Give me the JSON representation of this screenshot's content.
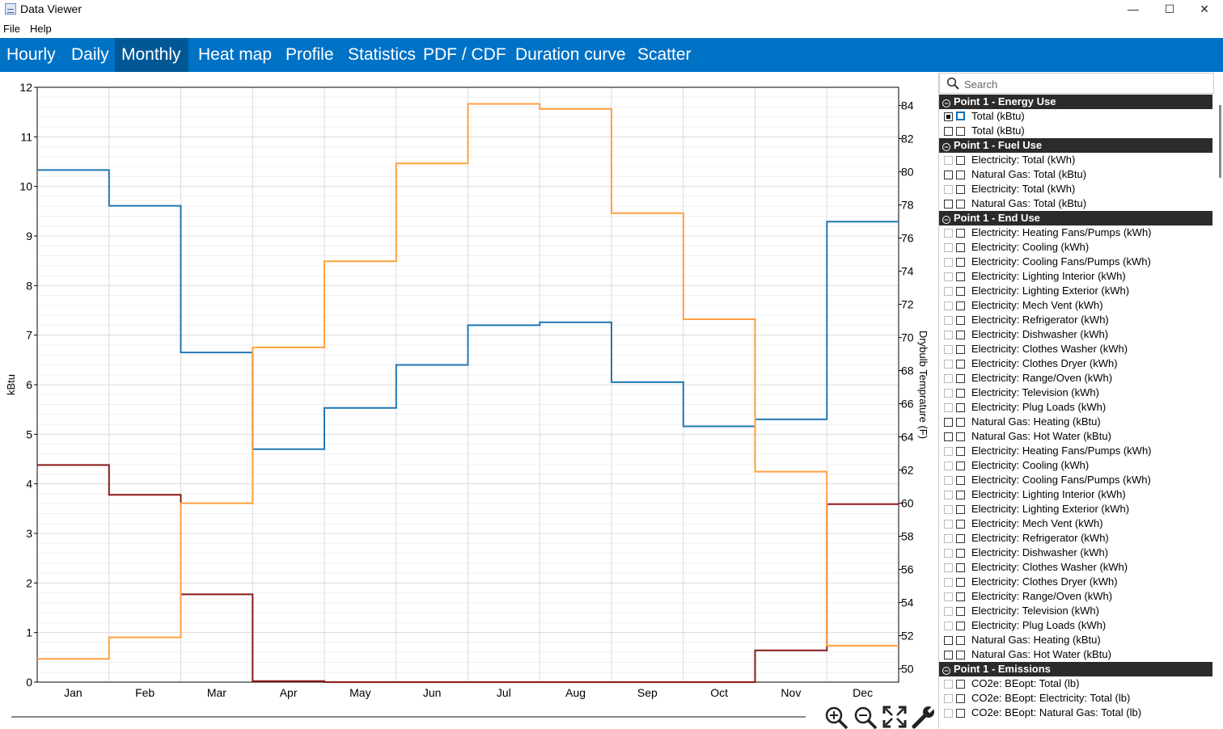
{
  "window": {
    "title": "Data Viewer",
    "minimize": "—",
    "maximize": "☐",
    "close": "✕"
  },
  "menu": [
    "File",
    "Help"
  ],
  "tabs": [
    "Hourly",
    "Daily",
    "Monthly",
    "Heat map",
    "Profile",
    "Statistics",
    "PDF / CDF",
    "Duration curve",
    "Scatter"
  ],
  "active_tab": "Monthly",
  "toolbar_icons": [
    "zoom-in-icon",
    "zoom-out-icon",
    "fit-icon",
    "settings-wrench-icon"
  ],
  "search": {
    "placeholder": "Search"
  },
  "panel": {
    "groups": [
      {
        "title": "Point 1 - Energy Use",
        "items": [
          {
            "label": "Total (kBtu)",
            "left": "on",
            "right": "blue"
          },
          {
            "label": "Total (kBtu)",
            "left": "plain",
            "right": "plain"
          }
        ]
      },
      {
        "title": "Point 1 - Fuel Use",
        "items": [
          {
            "label": "Electricity: Total (kWh)",
            "left": "faint",
            "right": "plain"
          },
          {
            "label": "Natural Gas: Total (kBtu)",
            "left": "plain",
            "right": "plain"
          },
          {
            "label": "Electricity: Total (kWh)",
            "left": "faint",
            "right": "plain"
          },
          {
            "label": "Natural Gas: Total (kBtu)",
            "left": "plain",
            "right": "plain"
          }
        ]
      },
      {
        "title": "Point 1 - End Use",
        "items": [
          {
            "label": "Electricity: Heating Fans/Pumps (kWh)",
            "left": "faint",
            "right": "plain"
          },
          {
            "label": "Electricity: Cooling (kWh)",
            "left": "faint",
            "right": "plain"
          },
          {
            "label": "Electricity: Cooling Fans/Pumps (kWh)",
            "left": "faint",
            "right": "plain"
          },
          {
            "label": "Electricity: Lighting Interior (kWh)",
            "left": "faint",
            "right": "plain"
          },
          {
            "label": "Electricity: Lighting Exterior (kWh)",
            "left": "faint",
            "right": "plain"
          },
          {
            "label": "Electricity: Mech Vent (kWh)",
            "left": "faint",
            "right": "plain"
          },
          {
            "label": "Electricity: Refrigerator (kWh)",
            "left": "faint",
            "right": "plain"
          },
          {
            "label": "Electricity: Dishwasher (kWh)",
            "left": "faint",
            "right": "plain"
          },
          {
            "label": "Electricity: Clothes Washer (kWh)",
            "left": "faint",
            "right": "plain"
          },
          {
            "label": "Electricity: Clothes Dryer (kWh)",
            "left": "faint",
            "right": "plain"
          },
          {
            "label": "Electricity: Range/Oven (kWh)",
            "left": "faint",
            "right": "plain"
          },
          {
            "label": "Electricity: Television (kWh)",
            "left": "faint",
            "right": "plain"
          },
          {
            "label": "Electricity: Plug Loads (kWh)",
            "left": "faint",
            "right": "plain"
          },
          {
            "label": "Natural Gas: Heating (kBtu)",
            "left": "plain",
            "right": "plain"
          },
          {
            "label": "Natural Gas: Hot Water (kBtu)",
            "left": "plain",
            "right": "plain"
          },
          {
            "label": "Electricity: Heating Fans/Pumps (kWh)",
            "left": "faint",
            "right": "plain"
          },
          {
            "label": "Electricity: Cooling (kWh)",
            "left": "faint",
            "right": "plain"
          },
          {
            "label": "Electricity: Cooling Fans/Pumps (kWh)",
            "left": "faint",
            "right": "plain"
          },
          {
            "label": "Electricity: Lighting Interior (kWh)",
            "left": "faint",
            "right": "plain"
          },
          {
            "label": "Electricity: Lighting Exterior (kWh)",
            "left": "faint",
            "right": "plain"
          },
          {
            "label": "Electricity: Mech Vent (kWh)",
            "left": "faint",
            "right": "plain"
          },
          {
            "label": "Electricity: Refrigerator (kWh)",
            "left": "faint",
            "right": "plain"
          },
          {
            "label": "Electricity: Dishwasher (kWh)",
            "left": "faint",
            "right": "plain"
          },
          {
            "label": "Electricity: Clothes Washer (kWh)",
            "left": "faint",
            "right": "plain"
          },
          {
            "label": "Electricity: Clothes Dryer (kWh)",
            "left": "faint",
            "right": "plain"
          },
          {
            "label": "Electricity: Range/Oven (kWh)",
            "left": "faint",
            "right": "plain"
          },
          {
            "label": "Electricity: Television (kWh)",
            "left": "faint",
            "right": "plain"
          },
          {
            "label": "Electricity: Plug Loads (kWh)",
            "left": "faint",
            "right": "plain"
          },
          {
            "label": "Natural Gas: Heating (kBtu)",
            "left": "plain",
            "right": "plain"
          },
          {
            "label": "Natural Gas: Hot Water (kBtu)",
            "left": "plain",
            "right": "plain"
          }
        ]
      },
      {
        "title": "Point 1 - Emissions",
        "items": [
          {
            "label": "CO2e: BEopt: Total (lb)",
            "left": "faint",
            "right": "plain"
          },
          {
            "label": "CO2e: BEopt: Electricity: Total (lb)",
            "left": "faint",
            "right": "plain"
          },
          {
            "label": "CO2e: BEopt: Natural Gas: Total (lb)",
            "left": "faint",
            "right": "plain"
          }
        ]
      }
    ]
  },
  "chart_data": {
    "type": "line",
    "step": true,
    "categories": [
      "Jan",
      "Feb",
      "Mar",
      "Apr",
      "May",
      "Jun",
      "Jul",
      "Aug",
      "Sep",
      "Oct",
      "Nov",
      "Dec"
    ],
    "ylabel": "kBtu",
    "y2label": "Drybulb Temprature (F)",
    "ylim": [
      0,
      12
    ],
    "yticks": [
      0,
      1,
      2,
      3,
      4,
      5,
      6,
      7,
      8,
      9,
      10,
      11,
      12
    ],
    "y2lim": [
      49.2,
      85.1
    ],
    "y2ticks": [
      50,
      52,
      54,
      56,
      58,
      60,
      62,
      64,
      66,
      68,
      70,
      72,
      74,
      76,
      78,
      80,
      82,
      84
    ],
    "grid": true,
    "series": [
      {
        "axis": "left",
        "color": "#1f77b4",
        "values": [
          10.33,
          9.61,
          6.65,
          4.7,
          5.53,
          6.4,
          7.2,
          7.26,
          6.05,
          5.16,
          5.3,
          9.29
        ]
      },
      {
        "axis": "left",
        "color": "#8b1a1a",
        "values": [
          4.38,
          3.78,
          1.77,
          0.02,
          0.0,
          0.0,
          0.0,
          0.0,
          0.0,
          0.0,
          0.64,
          3.59
        ]
      },
      {
        "axis": "right",
        "color": "#ff9f3f",
        "values": [
          50.6,
          51.9,
          60.0,
          69.4,
          74.6,
          80.5,
          84.1,
          83.8,
          77.5,
          71.1,
          61.9,
          51.4
        ]
      }
    ]
  }
}
